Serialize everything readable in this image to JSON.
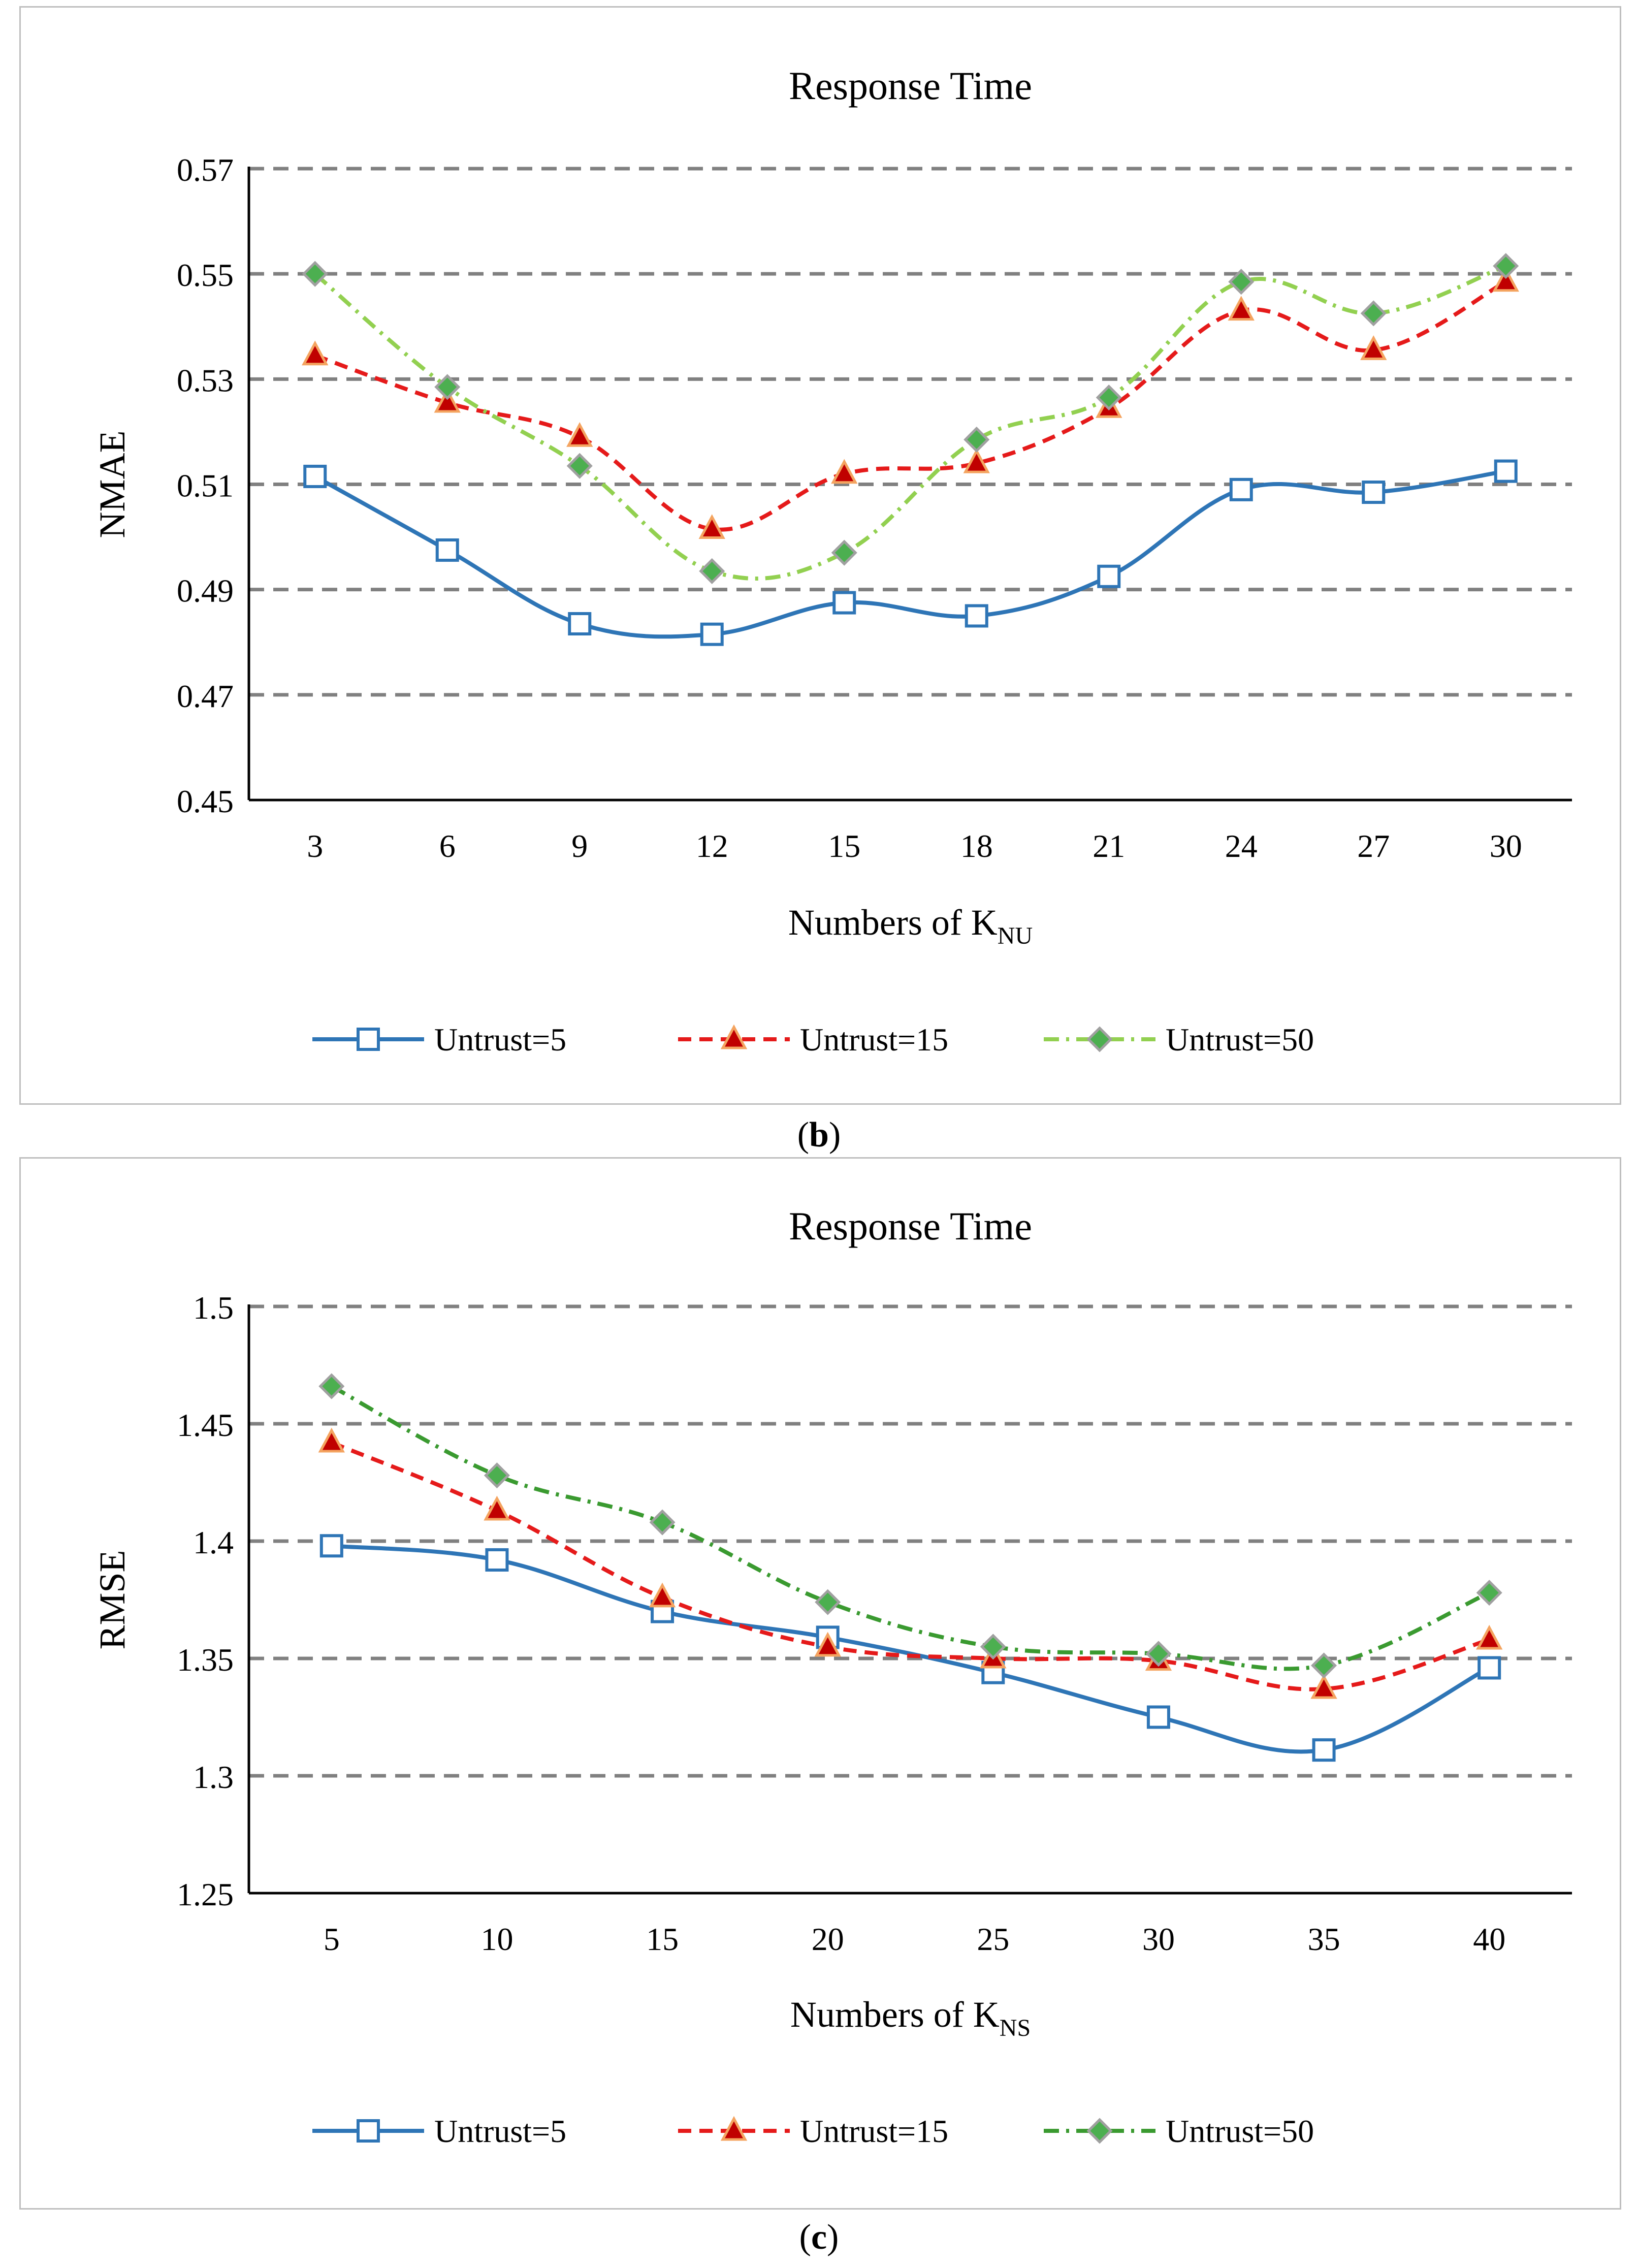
{
  "chart_data": [
    {
      "type": "line",
      "title": "Response Time",
      "xlabel": "Numbers of K",
      "xlabel_sub": "NU",
      "ylabel": "NMAE",
      "categories": [
        "3",
        "6",
        "9",
        "12",
        "15",
        "18",
        "21",
        "24",
        "27",
        "30"
      ],
      "ylim": [
        0.45,
        0.57
      ],
      "yticks": [
        0.45,
        0.47,
        0.49,
        0.51,
        0.53,
        0.55,
        0.57
      ],
      "ytick_labels": [
        "0.45",
        "0.47",
        "0.49",
        "0.51",
        "0.53",
        "0.55",
        "0.57"
      ],
      "grid": true,
      "legend_position": "bottom",
      "series": [
        {
          "name": "Untrust=5",
          "color": "#2e75b6",
          "marker": "square",
          "dash": "solid",
          "values": [
            0.5115,
            0.4975,
            0.4835,
            0.4815,
            0.4875,
            0.485,
            0.4925,
            0.509,
            0.5085,
            0.5125
          ]
        },
        {
          "name": "Untrust=15",
          "color": "#e51a1a",
          "marker": "triangle",
          "dash": "dash",
          "values": [
            0.5345,
            0.5255,
            0.519,
            0.5015,
            0.512,
            0.514,
            0.5245,
            0.543,
            0.5355,
            0.5485
          ]
        },
        {
          "name": "Untrust=50",
          "color": "#92d050",
          "marker": "diamond",
          "dash": "dashdot",
          "values": [
            0.55,
            0.5285,
            0.5135,
            0.4935,
            0.497,
            0.5185,
            0.5265,
            0.5485,
            0.5425,
            0.5515
          ]
        }
      ]
    },
    {
      "type": "line",
      "title": "Response Time",
      "xlabel": "Numbers of K",
      "xlabel_sub": "NS",
      "ylabel": "RMSE",
      "categories": [
        "5",
        "10",
        "15",
        "20",
        "25",
        "30",
        "35",
        "40"
      ],
      "ylim": [
        1.25,
        1.5
      ],
      "yticks": [
        1.25,
        1.3,
        1.35,
        1.4,
        1.45,
        1.5
      ],
      "ytick_labels": [
        "1.25",
        "1.3",
        "1.35",
        "1.4",
        "1.45",
        "1.5"
      ],
      "grid": true,
      "legend_position": "bottom",
      "series": [
        {
          "name": "Untrust=5",
          "color": "#2e75b6",
          "marker": "square",
          "dash": "solid",
          "values": [
            1.398,
            1.392,
            1.37,
            1.359,
            1.344,
            1.325,
            1.311,
            1.346
          ]
        },
        {
          "name": "Untrust=15",
          "color": "#e51a1a",
          "marker": "triangle",
          "dash": "dash",
          "values": [
            1.442,
            1.413,
            1.376,
            1.355,
            1.35,
            1.349,
            1.337,
            1.358
          ]
        },
        {
          "name": "Untrust=50",
          "color": "#3a9a30",
          "marker": "diamond",
          "dash": "dashdot",
          "values": [
            1.466,
            1.428,
            1.408,
            1.374,
            1.355,
            1.352,
            1.347,
            1.378
          ]
        }
      ]
    }
  ],
  "captions": [
    {
      "open": "(",
      "letter": "b",
      "close": ")"
    },
    {
      "open": "(",
      "letter": "c",
      "close": ")"
    }
  ]
}
